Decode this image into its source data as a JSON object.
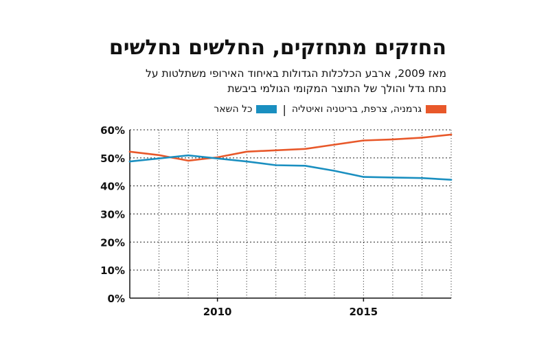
{
  "header": {
    "title": "החזקים מתחזקים, החלשים נחלשים",
    "subtitle_line1": "מאז 2009, ארבע הכלכלות הגדולות באיחוד האירופי משתלטות על",
    "subtitle_line2": "נתח גדל והולך של התוצר המקומי הגולמי ביבשת"
  },
  "legend": {
    "separator": "|"
  },
  "colors": {
    "big4": "#e8582a",
    "rest": "#1a8fc0",
    "axis": "#111111",
    "grid": "#222222"
  },
  "chart_data": {
    "type": "line",
    "x": [
      2007,
      2008,
      2009,
      2010,
      2011,
      2012,
      2013,
      2014,
      2015,
      2016,
      2017,
      2018
    ],
    "series": [
      {
        "name": "גרמניה, צרפת, בריטניה ואיטליה",
        "color": "#e8582a",
        "values": [
          52.2,
          51.0,
          49.0,
          50.2,
          52.2,
          52.7,
          53.2,
          54.7,
          56.2,
          56.6,
          57.2,
          58.3
        ]
      },
      {
        "name": "כל השאר",
        "color": "#1a8fc0",
        "values": [
          48.7,
          49.8,
          50.9,
          49.8,
          48.7,
          47.4,
          47.2,
          45.4,
          43.2,
          43.0,
          42.8,
          42.2
        ]
      }
    ],
    "xticks": [
      2010,
      2015
    ],
    "xtick_labels": [
      "2010",
      "2015"
    ],
    "yticks": [
      0,
      10,
      20,
      30,
      40,
      50,
      60
    ],
    "ytick_labels": [
      "0%",
      "10%",
      "20%",
      "30%",
      "40%",
      "50%",
      "60%"
    ],
    "xlim": [
      2007,
      2018
    ],
    "ylim": [
      0,
      60
    ],
    "grid": "horizontal-dashed",
    "legend_position": "top-right"
  }
}
